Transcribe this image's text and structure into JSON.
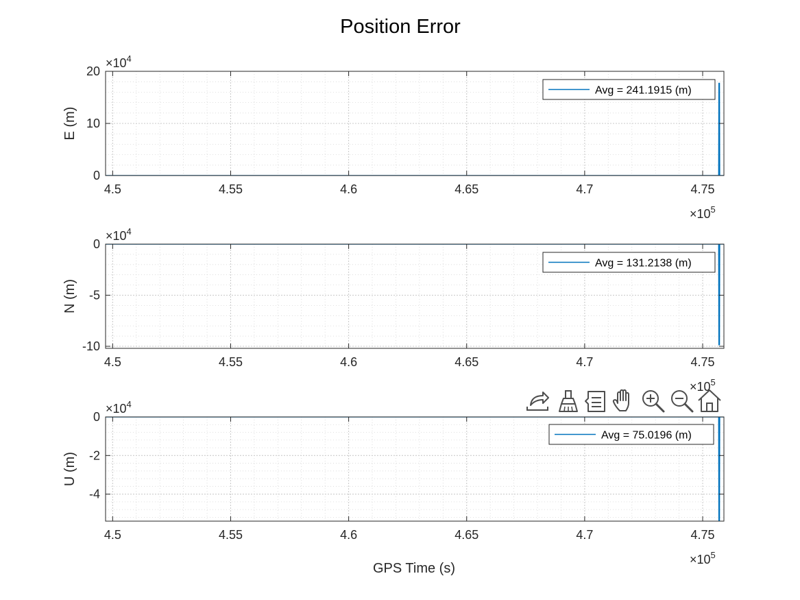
{
  "figure": {
    "title": "Position Error",
    "xlabel": "GPS Time (s)"
  },
  "colors": {
    "series": "#0072bd",
    "axis": "#262626",
    "grid": "#d6d6d6",
    "icon": "#4d4d4d"
  },
  "chart_data": [
    {
      "type": "line",
      "ylabel": "E (m)",
      "legend": "Avg = 241.1915 (m)",
      "legend_loc": "top-right",
      "grid": true,
      "y_exponent": "4",
      "x_exponent": "5",
      "xlim": [
        4.497,
        4.759
      ],
      "ylim": [
        0,
        20
      ],
      "yticks": [
        0,
        10,
        20
      ],
      "ytick_labels": [
        "0",
        "10",
        "20"
      ],
      "xticks": [
        4.5,
        4.55,
        4.6,
        4.65,
        4.7,
        4.75
      ],
      "xtick_labels": [
        "4.5",
        "4.55",
        "4.6",
        "4.65",
        "4.7",
        "4.75"
      ],
      "series": [
        {
          "name": "Avg = 241.1915 (m)",
          "x": [
            4.497,
            4.7568,
            4.7569,
            4.757,
            4.7571,
            4.7572,
            4.7585,
            4.759
          ],
          "y": [
            0,
            0,
            17.8,
            0,
            17.8,
            0,
            0,
            0
          ]
        }
      ]
    },
    {
      "type": "line",
      "ylabel": "N (m)",
      "legend": "Avg = 131.2138 (m)",
      "legend_loc": "top-right",
      "grid": true,
      "y_exponent": "4",
      "x_exponent": "5",
      "xlim": [
        4.497,
        4.759
      ],
      "ylim": [
        -10.2,
        0
      ],
      "yticks": [
        -10,
        -5,
        0
      ],
      "ytick_labels": [
        "-10",
        "-5",
        "0"
      ],
      "xticks": [
        4.5,
        4.55,
        4.6,
        4.65,
        4.7,
        4.75
      ],
      "xtick_labels": [
        "4.5",
        "4.55",
        "4.6",
        "4.65",
        "4.7",
        "4.75"
      ],
      "series": [
        {
          "name": "Avg = 131.2138 (m)",
          "x": [
            4.497,
            4.7568,
            4.7569,
            4.757,
            4.7571,
            4.7572,
            4.759
          ],
          "y": [
            0,
            0,
            -9.9,
            0,
            -9.9,
            0,
            0
          ]
        }
      ]
    },
    {
      "type": "line",
      "ylabel": "U (m)",
      "legend": "Avg = 75.0196 (m)",
      "legend_loc": "top-right",
      "grid": true,
      "y_exponent": "4",
      "x_exponent": "5",
      "xlim": [
        4.497,
        4.759
      ],
      "ylim": [
        -5.4,
        0
      ],
      "yticks": [
        -4,
        -2,
        0
      ],
      "ytick_labels": [
        "-4",
        "-2",
        "0"
      ],
      "xticks": [
        4.5,
        4.55,
        4.6,
        4.65,
        4.7,
        4.75
      ],
      "xtick_labels": [
        "4.5",
        "4.55",
        "4.6",
        "4.65",
        "4.7",
        "4.75"
      ],
      "series": [
        {
          "name": "Avg = 75.0196 (m)",
          "x": [
            4.497,
            4.7568,
            4.7569,
            4.757,
            4.7571,
            4.7572,
            4.759
          ],
          "y": [
            0,
            0,
            -5.4,
            0,
            -5.4,
            0,
            0
          ]
        }
      ]
    }
  ],
  "toolbar": {
    "items": [
      {
        "name": "export-icon",
        "tooltip": "Export"
      },
      {
        "name": "brush-icon",
        "tooltip": "Brush"
      },
      {
        "name": "data-tips-icon",
        "tooltip": "Data Tips"
      },
      {
        "name": "pan-icon",
        "tooltip": "Pan"
      },
      {
        "name": "zoom-in-icon",
        "tooltip": "Zoom In"
      },
      {
        "name": "zoom-out-icon",
        "tooltip": "Zoom Out"
      },
      {
        "name": "home-icon",
        "tooltip": "Restore View"
      }
    ]
  }
}
